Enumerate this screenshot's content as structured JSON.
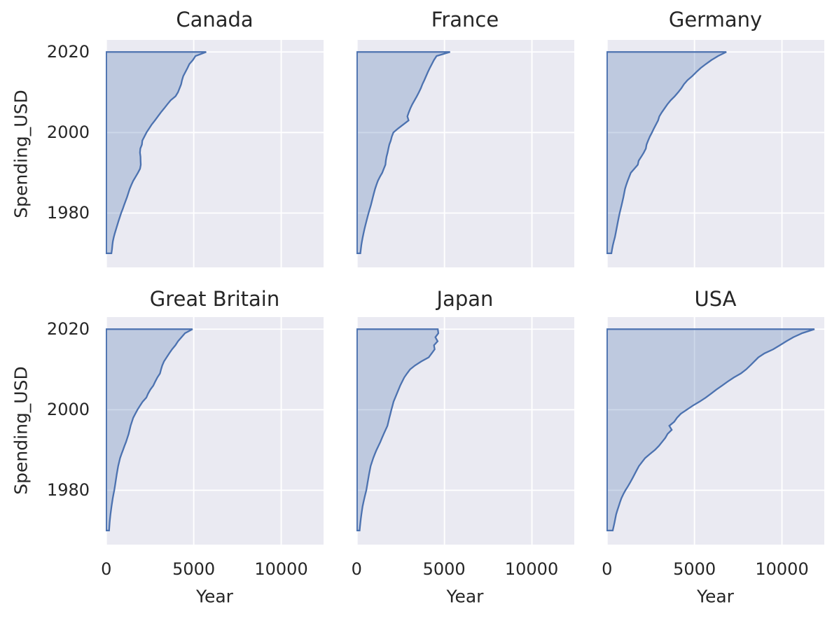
{
  "style": {
    "figure_background": "#ffffff",
    "axes_background": "#eaeaf2",
    "grid_color": "#ffffff",
    "line_color": "#4c72b0",
    "fill_color": "rgba(76,114,176,0.28)",
    "text_color": "#262626"
  },
  "axes": {
    "x": {
      "label": "Year",
      "ticks": [
        {
          "value": 0,
          "label": "0"
        },
        {
          "value": 5000,
          "label": "5000"
        },
        {
          "value": 10000,
          "label": "10000"
        }
      ],
      "lim": [
        -30,
        12420
      ]
    },
    "y": {
      "label": "Spending_USD",
      "ticks": [
        {
          "value": 2020,
          "label": "2020"
        },
        {
          "value": 2000,
          "label": "2000"
        },
        {
          "value": 1980,
          "label": "1980"
        }
      ],
      "lim": [
        1966.5,
        2023
      ]
    }
  },
  "chart_data": {
    "type": "area",
    "layout": "facet-grid 2 rows x 3 cols, shared axes, seaborn darkgrid",
    "point_format": "[Year, Spending_USD]",
    "fill_baseline_x": 0,
    "top_edge_year": 2020,
    "facets": [
      {
        "title": "Canada",
        "points": [
          [
            1970,
            294
          ],
          [
            1971,
            327
          ],
          [
            1972,
            349
          ],
          [
            1973,
            378
          ],
          [
            1974,
            428
          ],
          [
            1975,
            490
          ],
          [
            1976,
            560
          ],
          [
            1977,
            630
          ],
          [
            1978,
            700
          ],
          [
            1979,
            775
          ],
          [
            1980,
            850
          ],
          [
            1981,
            940
          ],
          [
            1982,
            1020
          ],
          [
            1983,
            1105
          ],
          [
            1984,
            1190
          ],
          [
            1985,
            1265
          ],
          [
            1986,
            1340
          ],
          [
            1987,
            1435
          ],
          [
            1988,
            1540
          ],
          [
            1989,
            1676
          ],
          [
            1990,
            1811
          ],
          [
            1991,
            1930
          ],
          [
            1992,
            1972
          ],
          [
            1993,
            1962
          ],
          [
            1994,
            1956
          ],
          [
            1995,
            1926
          ],
          [
            1996,
            1946
          ],
          [
            1997,
            2037
          ],
          [
            1998,
            2061
          ],
          [
            1999,
            2180
          ],
          [
            2000,
            2298
          ],
          [
            2001,
            2450
          ],
          [
            2002,
            2600
          ],
          [
            2003,
            2780
          ],
          [
            2004,
            2950
          ],
          [
            2005,
            3120
          ],
          [
            2006,
            3310
          ],
          [
            2007,
            3490
          ],
          [
            2008,
            3680
          ],
          [
            2009,
            3960
          ],
          [
            2010,
            4100
          ],
          [
            2011,
            4190
          ],
          [
            2012,
            4280
          ],
          [
            2013,
            4330
          ],
          [
            2014,
            4400
          ],
          [
            2015,
            4520
          ],
          [
            2016,
            4640
          ],
          [
            2017,
            4750
          ],
          [
            2018,
            4950
          ],
          [
            2019,
            5100
          ],
          [
            2020,
            5710
          ]
        ]
      },
      {
        "title": "France",
        "points": [
          [
            1970,
            192
          ],
          [
            1971,
            220
          ],
          [
            1972,
            247
          ],
          [
            1973,
            285
          ],
          [
            1974,
            328
          ],
          [
            1975,
            375
          ],
          [
            1976,
            426
          ],
          [
            1977,
            482
          ],
          [
            1978,
            541
          ],
          [
            1979,
            600
          ],
          [
            1980,
            663
          ],
          [
            1981,
            730
          ],
          [
            1982,
            797
          ],
          [
            1983,
            855
          ],
          [
            1984,
            911
          ],
          [
            1985,
            972
          ],
          [
            1986,
            1034
          ],
          [
            1987,
            1110
          ],
          [
            1988,
            1194
          ],
          [
            1989,
            1310
          ],
          [
            1990,
            1442
          ],
          [
            1991,
            1532
          ],
          [
            1992,
            1625
          ],
          [
            1993,
            1649
          ],
          [
            1994,
            1688
          ],
          [
            1995,
            1748
          ],
          [
            1996,
            1795
          ],
          [
            1997,
            1847
          ],
          [
            1998,
            1932
          ],
          [
            1999,
            1990
          ],
          [
            2000,
            2080
          ],
          [
            2001,
            2350
          ],
          [
            2002,
            2650
          ],
          [
            2003,
            2950
          ],
          [
            2004,
            2880
          ],
          [
            2005,
            2960
          ],
          [
            2006,
            3050
          ],
          [
            2007,
            3160
          ],
          [
            2008,
            3290
          ],
          [
            2009,
            3420
          ],
          [
            2010,
            3540
          ],
          [
            2011,
            3650
          ],
          [
            2012,
            3740
          ],
          [
            2013,
            3850
          ],
          [
            2014,
            3950
          ],
          [
            2015,
            4050
          ],
          [
            2016,
            4160
          ],
          [
            2017,
            4280
          ],
          [
            2018,
            4400
          ],
          [
            2019,
            4550
          ],
          [
            2020,
            5320
          ]
        ]
      },
      {
        "title": "Germany",
        "points": [
          [
            1970,
            252
          ],
          [
            1971,
            290
          ],
          [
            1972,
            334
          ],
          [
            1973,
            390
          ],
          [
            1974,
            452
          ],
          [
            1975,
            497
          ],
          [
            1976,
            541
          ],
          [
            1977,
            585
          ],
          [
            1978,
            629
          ],
          [
            1979,
            675
          ],
          [
            1980,
            723
          ],
          [
            1981,
            780
          ],
          [
            1982,
            836
          ],
          [
            1983,
            888
          ],
          [
            1984,
            939
          ],
          [
            1985,
            985
          ],
          [
            1986,
            1030
          ],
          [
            1987,
            1100
          ],
          [
            1988,
            1180
          ],
          [
            1989,
            1270
          ],
          [
            1990,
            1360
          ],
          [
            1991,
            1560
          ],
          [
            1992,
            1760
          ],
          [
            1993,
            1810
          ],
          [
            1994,
            1960
          ],
          [
            1995,
            2100
          ],
          [
            1996,
            2220
          ],
          [
            1997,
            2260
          ],
          [
            1998,
            2350
          ],
          [
            1999,
            2450
          ],
          [
            2000,
            2570
          ],
          [
            2001,
            2680
          ],
          [
            2002,
            2800
          ],
          [
            2003,
            2920
          ],
          [
            2004,
            2990
          ],
          [
            2005,
            3130
          ],
          [
            2006,
            3290
          ],
          [
            2007,
            3450
          ],
          [
            2008,
            3640
          ],
          [
            2009,
            3870
          ],
          [
            2010,
            4070
          ],
          [
            2011,
            4250
          ],
          [
            2012,
            4400
          ],
          [
            2013,
            4600
          ],
          [
            2014,
            4870
          ],
          [
            2015,
            5100
          ],
          [
            2016,
            5350
          ],
          [
            2017,
            5650
          ],
          [
            2018,
            5970
          ],
          [
            2019,
            6350
          ],
          [
            2020,
            6820
          ]
        ]
      },
      {
        "title": "Great Britain",
        "points": [
          [
            1970,
            160
          ],
          [
            1971,
            176
          ],
          [
            1972,
            193
          ],
          [
            1973,
            215
          ],
          [
            1974,
            240
          ],
          [
            1975,
            270
          ],
          [
            1976,
            300
          ],
          [
            1977,
            335
          ],
          [
            1978,
            370
          ],
          [
            1979,
            412
          ],
          [
            1980,
            458
          ],
          [
            1981,
            495
          ],
          [
            1982,
            530
          ],
          [
            1983,
            565
          ],
          [
            1984,
            600
          ],
          [
            1985,
            640
          ],
          [
            1986,
            680
          ],
          [
            1987,
            735
          ],
          [
            1988,
            790
          ],
          [
            1989,
            870
          ],
          [
            1990,
            957
          ],
          [
            1991,
            1040
          ],
          [
            1992,
            1130
          ],
          [
            1993,
            1205
          ],
          [
            1994,
            1280
          ],
          [
            1995,
            1335
          ],
          [
            1996,
            1390
          ],
          [
            1997,
            1465
          ],
          [
            1998,
            1540
          ],
          [
            1999,
            1660
          ],
          [
            2000,
            1784
          ],
          [
            2001,
            1930
          ],
          [
            2002,
            2080
          ],
          [
            2003,
            2290
          ],
          [
            2004,
            2390
          ],
          [
            2005,
            2520
          ],
          [
            2006,
            2690
          ],
          [
            2007,
            2800
          ],
          [
            2008,
            2920
          ],
          [
            2009,
            3070
          ],
          [
            2010,
            3130
          ],
          [
            2011,
            3200
          ],
          [
            2012,
            3300
          ],
          [
            2013,
            3450
          ],
          [
            2014,
            3600
          ],
          [
            2015,
            3760
          ],
          [
            2016,
            3950
          ],
          [
            2017,
            4100
          ],
          [
            2018,
            4300
          ],
          [
            2019,
            4500
          ],
          [
            2020,
            4930
          ]
        ]
      },
      {
        "title": "Japan",
        "points": [
          [
            1970,
            149
          ],
          [
            1971,
            170
          ],
          [
            1972,
            195
          ],
          [
            1973,
            222
          ],
          [
            1974,
            252
          ],
          [
            1975,
            285
          ],
          [
            1976,
            320
          ],
          [
            1977,
            368
          ],
          [
            1978,
            420
          ],
          [
            1979,
            475
          ],
          [
            1980,
            533
          ],
          [
            1981,
            572
          ],
          [
            1982,
            610
          ],
          [
            1983,
            650
          ],
          [
            1984,
            690
          ],
          [
            1985,
            735
          ],
          [
            1986,
            780
          ],
          [
            1987,
            855
          ],
          [
            1988,
            930
          ],
          [
            1989,
            1020
          ],
          [
            1990,
            1115
          ],
          [
            1991,
            1225
          ],
          [
            1992,
            1335
          ],
          [
            1993,
            1430
          ],
          [
            1994,
            1530
          ],
          [
            1995,
            1635
          ],
          [
            1996,
            1740
          ],
          [
            1997,
            1795
          ],
          [
            1998,
            1850
          ],
          [
            1999,
            1910
          ],
          [
            2000,
            1967
          ],
          [
            2001,
            2030
          ],
          [
            2002,
            2090
          ],
          [
            2003,
            2185
          ],
          [
            2004,
            2280
          ],
          [
            2005,
            2375
          ],
          [
            2006,
            2470
          ],
          [
            2007,
            2585
          ],
          [
            2008,
            2700
          ],
          [
            2009,
            2860
          ],
          [
            2010,
            3030
          ],
          [
            2011,
            3320
          ],
          [
            2012,
            3680
          ],
          [
            2013,
            4100
          ],
          [
            2014,
            4270
          ],
          [
            2015,
            4440
          ],
          [
            2016,
            4400
          ],
          [
            2017,
            4610
          ],
          [
            2018,
            4480
          ],
          [
            2019,
            4650
          ],
          [
            2020,
            4620
          ]
        ]
      },
      {
        "title": "USA",
        "points": [
          [
            1970,
            327
          ],
          [
            1971,
            380
          ],
          [
            1972,
            430
          ],
          [
            1973,
            475
          ],
          [
            1974,
            521
          ],
          [
            1975,
            590
          ],
          [
            1976,
            666
          ],
          [
            1977,
            740
          ],
          [
            1978,
            822
          ],
          [
            1979,
            930
          ],
          [
            1980,
            1055
          ],
          [
            1981,
            1200
          ],
          [
            1982,
            1334
          ],
          [
            1983,
            1460
          ],
          [
            1984,
            1580
          ],
          [
            1985,
            1700
          ],
          [
            1986,
            1824
          ],
          [
            1987,
            2000
          ],
          [
            1988,
            2180
          ],
          [
            1989,
            2450
          ],
          [
            1990,
            2738
          ],
          [
            1991,
            2962
          ],
          [
            1992,
            3149
          ],
          [
            1993,
            3331
          ],
          [
            1994,
            3464
          ],
          [
            1995,
            3700
          ],
          [
            1996,
            3560
          ],
          [
            1997,
            3840
          ],
          [
            1998,
            4000
          ],
          [
            1999,
            4220
          ],
          [
            2000,
            4559
          ],
          [
            2001,
            4900
          ],
          [
            2002,
            5290
          ],
          [
            2003,
            5640
          ],
          [
            2004,
            5950
          ],
          [
            2005,
            6250
          ],
          [
            2006,
            6580
          ],
          [
            2007,
            6900
          ],
          [
            2008,
            7250
          ],
          [
            2009,
            7650
          ],
          [
            2010,
            7950
          ],
          [
            2011,
            8190
          ],
          [
            2012,
            8420
          ],
          [
            2013,
            8650
          ],
          [
            2014,
            9000
          ],
          [
            2015,
            9500
          ],
          [
            2016,
            9880
          ],
          [
            2017,
            10250
          ],
          [
            2018,
            10650
          ],
          [
            2019,
            11150
          ],
          [
            2020,
            11859
          ]
        ]
      }
    ]
  }
}
